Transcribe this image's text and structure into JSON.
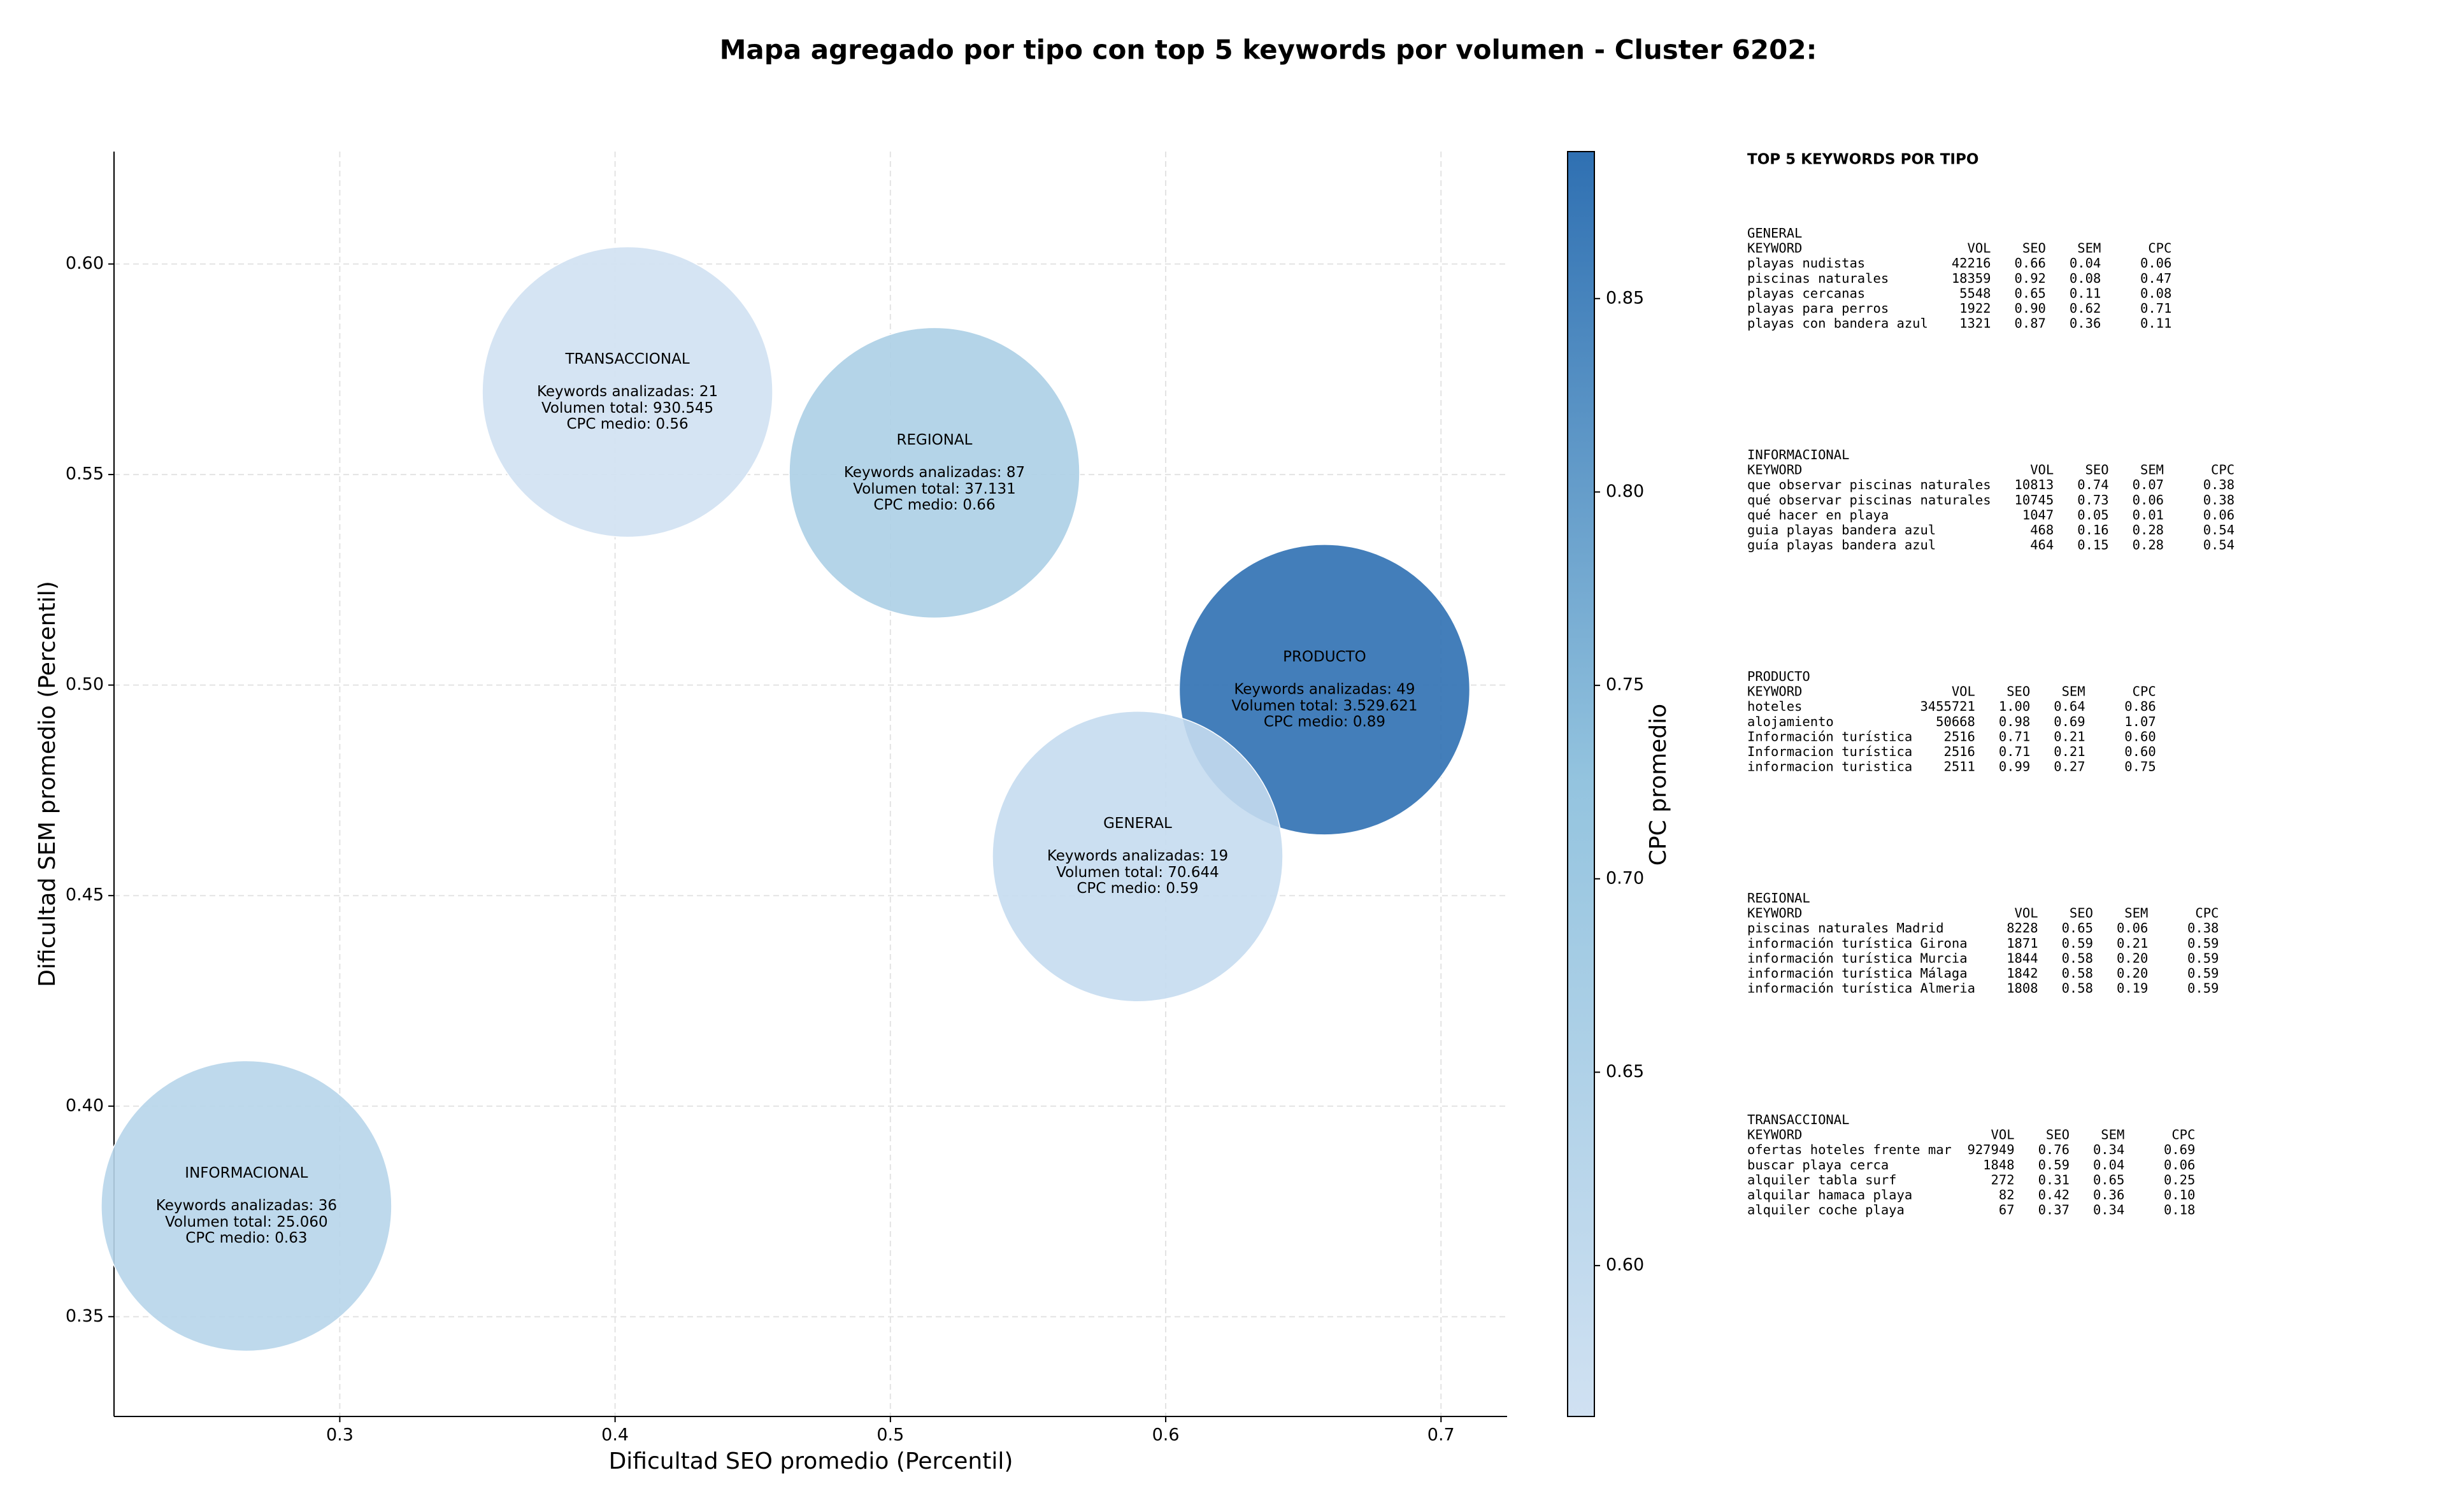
{
  "chart_data": {
    "type": "bubble",
    "title": "Mapa agregado por tipo con top 5 keywords por volumen - Cluster 6202:",
    "x_label": "Dificultad SEO promedio (Percentil)",
    "y_label": "Dificultad SEM promedio (Percentil)",
    "colorbar_label": "CPC promedio",
    "xlim": [
      0.218,
      0.724
    ],
    "ylim": [
      0.3263,
      0.6267
    ],
    "clim": [
      0.561,
      0.888
    ],
    "xticks": [
      0.3,
      0.4,
      0.5,
      0.6,
      0.7
    ],
    "yticks": [
      {
        "value": 0.35,
        "label": "0.35"
      },
      {
        "value": 0.4,
        "label": "0.40"
      },
      {
        "value": 0.45,
        "label": "0.45"
      },
      {
        "value": 0.5,
        "label": "0.50"
      },
      {
        "value": 0.55,
        "label": "0.55"
      },
      {
        "value": 0.6,
        "label": "0.60"
      }
    ],
    "cticks": [
      {
        "value": 0.6,
        "label": "0.60"
      },
      {
        "value": 0.65,
        "label": "0.65"
      },
      {
        "value": 0.7,
        "label": "0.70"
      },
      {
        "value": 0.75,
        "label": "0.75"
      },
      {
        "value": 0.8,
        "label": "0.80"
      },
      {
        "value": 0.85,
        "label": "0.85"
      }
    ],
    "grid": true,
    "points": [
      {
        "x": 0.4045,
        "y": 0.5696,
        "cpc": 0.56,
        "labels": [
          "TRANSACCIONAL",
          "Keywords analizadas: 21",
          "Volumen total: 930.545",
          "CPC medio: 0.56"
        ]
      },
      {
        "x": 0.516,
        "y": 0.5504,
        "cpc": 0.66,
        "labels": [
          "REGIONAL",
          "Keywords analizadas: 87",
          "Volumen total: 37.131",
          "CPC medio: 0.66"
        ]
      },
      {
        "x": 0.6577,
        "y": 0.4989,
        "cpc": 0.89,
        "labels": [
          "PRODUCTO",
          "Keywords analizadas: 49",
          "Volumen total: 3.529.621",
          "CPC medio: 0.89"
        ]
      },
      {
        "x": 0.5898,
        "y": 0.4593,
        "cpc": 0.59,
        "labels": [
          "GENERAL",
          "Keywords analizadas: 19",
          "Volumen total: 70.644",
          "CPC medio: 0.59"
        ]
      },
      {
        "x": 0.2661,
        "y": 0.3763,
        "cpc": 0.63,
        "labels": [
          "INFORMACIONAL",
          "Keywords analizadas: 36",
          "Volumen total: 25.060",
          "CPC medio: 0.63"
        ]
      }
    ]
  },
  "keyword_panel": {
    "title": "TOP 5 KEYWORDS POR TIPO",
    "header": [
      "KEYWORD",
      "VOL",
      "SEO",
      "SEM",
      "CPC"
    ],
    "groups": [
      {
        "name": "GENERAL",
        "rows": [
          [
            "playas nudistas",
            "42216",
            "0.66",
            "0.04",
            "0.06"
          ],
          [
            "piscinas naturales",
            "18359",
            "0.92",
            "0.08",
            "0.47"
          ],
          [
            "playas cercanas",
            "5548",
            "0.65",
            "0.11",
            "0.08"
          ],
          [
            "playas para perros",
            "1922",
            "0.90",
            "0.62",
            "0.71"
          ],
          [
            "playas con bandera azul",
            "1321",
            "0.87",
            "0.36",
            "0.11"
          ]
        ]
      },
      {
        "name": "INFORMACIONAL",
        "rows": [
          [
            "que observar piscinas naturales",
            "10813",
            "0.74",
            "0.07",
            "0.38"
          ],
          [
            "qué observar piscinas naturales",
            "10745",
            "0.73",
            "0.06",
            "0.38"
          ],
          [
            "qué hacer en playa",
            "1047",
            "0.05",
            "0.01",
            "0.06"
          ],
          [
            "guia playas bandera azul",
            "468",
            "0.16",
            "0.28",
            "0.54"
          ],
          [
            "guía playas bandera azul",
            "464",
            "0.15",
            "0.28",
            "0.54"
          ]
        ]
      },
      {
        "name": "PRODUCTO",
        "rows": [
          [
            "hoteles",
            "3455721",
            "1.00",
            "0.64",
            "0.86"
          ],
          [
            "alojamiento",
            "50668",
            "0.98",
            "0.69",
            "1.07"
          ],
          [
            "Información turística",
            "2516",
            "0.71",
            "0.21",
            "0.60"
          ],
          [
            "Informacion turística",
            "2516",
            "0.71",
            "0.21",
            "0.60"
          ],
          [
            "informacion turistica",
            "2511",
            "0.99",
            "0.27",
            "0.75"
          ]
        ]
      },
      {
        "name": "REGIONAL",
        "rows": [
          [
            "piscinas naturales Madrid",
            "8228",
            "0.65",
            "0.06",
            "0.38"
          ],
          [
            "información turística Girona",
            "1871",
            "0.59",
            "0.21",
            "0.59"
          ],
          [
            "información turística Murcia",
            "1844",
            "0.58",
            "0.20",
            "0.59"
          ],
          [
            "información turística Málaga",
            "1842",
            "0.58",
            "0.20",
            "0.59"
          ],
          [
            "información turística Almeria",
            "1808",
            "0.58",
            "0.19",
            "0.59"
          ]
        ]
      },
      {
        "name": "TRANSACCIONAL",
        "rows": [
          [
            "ofertas hoteles frente mar",
            "927949",
            "0.76",
            "0.34",
            "0.69"
          ],
          [
            "buscar playa cerca",
            "1848",
            "0.59",
            "0.04",
            "0.06"
          ],
          [
            "alquiler tabla surf",
            "272",
            "0.31",
            "0.65",
            "0.25"
          ],
          [
            "alquilar hamaca playa",
            "82",
            "0.42",
            "0.36",
            "0.10"
          ],
          [
            "alquiler coche playa",
            "67",
            "0.37",
            "0.34",
            "0.18"
          ]
        ]
      }
    ]
  }
}
